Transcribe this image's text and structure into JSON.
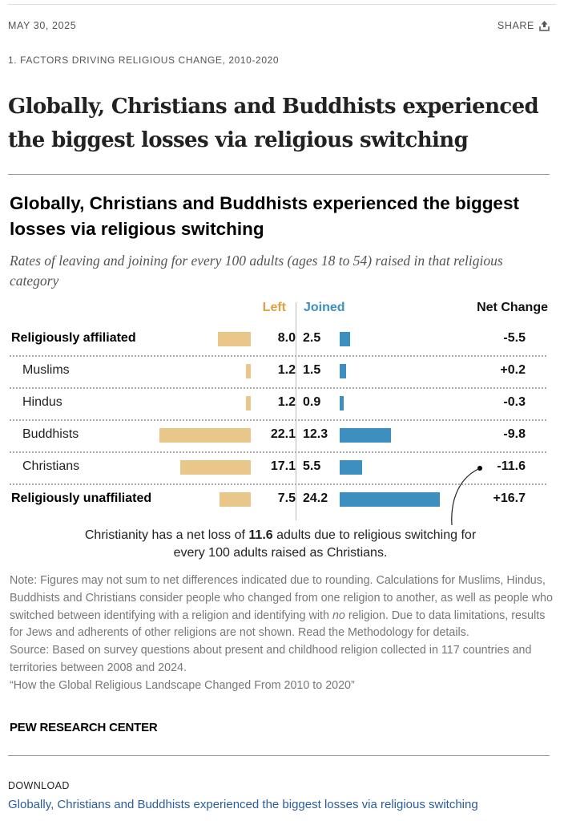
{
  "header": {
    "date": "MAY 30, 2025",
    "share_label": "SHARE",
    "section": "1. FACTORS DRIVING RELIGIOUS CHANGE, 2010-2020"
  },
  "headline": "Globally, Christians and Buddhists experienced the biggest losses via religious switching",
  "chart": {
    "title": "Globally, Christians and Buddhists experienced the biggest losses via religious switching",
    "subtitle": "Rates of leaving and joining for every 100 adults (ages 18 to 54) raised in that religious category",
    "annotation_a": "Christianity has a net loss of ",
    "annotation_bold": "11.6",
    "annotation_b": " adults due to religious switching for every 100 adults raised as Christians.",
    "note_a": "Note: Figures may not sum to net differences indicated due to rounding. Calculations for Muslims, Hindus, Buddhists and Christians consider people who changed from one religion to another, as well as people who switched between identifying with a religion and identifying with ",
    "note_em": "no",
    "note_b": " religion. Due to data limitations, results for Jews and adherents of other religions are not shown. Read the Methodology for details.",
    "source": "Source: Based on survey questions about present and childhood religion collected in 117 countries and territories between 2008 and 2024.",
    "report": "“How the Global Religious Landscape Changed From 2010 to 2020”",
    "credit": "PEW RESEARCH CENTER"
  },
  "chart_data": {
    "type": "bar",
    "title": "Globally, Christians and Buddhists experienced the biggest losses via religious switching",
    "column_headers": {
      "left": "Left",
      "joined": "Joined",
      "net": "Net Change"
    },
    "categories": [
      "Religiously affiliated",
      "Muslims",
      "Hindus",
      "Buddhists",
      "Christians",
      "Religiously unaffiliated"
    ],
    "bold": [
      true,
      false,
      false,
      false,
      false,
      true
    ],
    "series": [
      {
        "name": "Left",
        "color": "#e9c68a",
        "values": [
          8.0,
          1.2,
          1.2,
          22.1,
          17.1,
          7.5
        ],
        "labels": [
          "8.0",
          "1.2",
          "1.2",
          "22.1",
          "17.1",
          "7.5"
        ]
      },
      {
        "name": "Joined",
        "color": "#3d8fc0",
        "values": [
          2.5,
          1.5,
          0.9,
          12.3,
          5.5,
          24.2
        ],
        "labels": [
          "2.5",
          "1.5",
          "0.9",
          "12.3",
          "5.5",
          "24.2"
        ]
      }
    ],
    "net_change": [
      "-5.5",
      "+0.2",
      "-0.3",
      "-9.8",
      "-11.6",
      "+16.7"
    ],
    "header_colors": {
      "left": "#e0a040",
      "joined": "#3d8fc0"
    }
  },
  "download": {
    "label": "DOWNLOAD",
    "link": "Globally, Christians and Buddhists experienced the biggest losses via religious switching"
  }
}
